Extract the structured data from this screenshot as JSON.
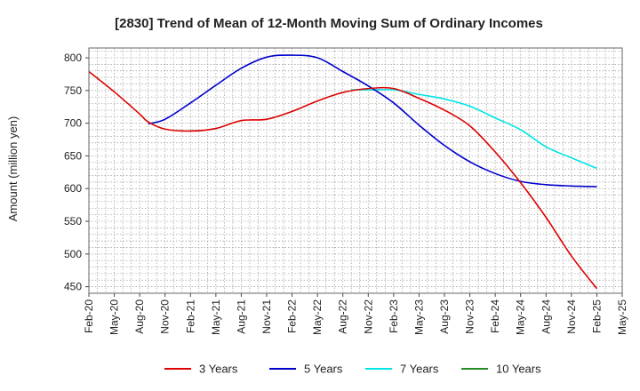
{
  "chart_data": {
    "type": "line",
    "title": "[2830]  Trend of Mean of 12-Month Moving Sum of Ordinary Incomes",
    "xlabel": "",
    "ylabel": "Amount (million yen)",
    "ylim": [
      440,
      815
    ],
    "yticks": [
      450,
      500,
      550,
      600,
      650,
      700,
      750,
      800
    ],
    "x_categories": [
      "Feb-20",
      "May-20",
      "Aug-20",
      "Nov-20",
      "Feb-21",
      "May-21",
      "Aug-21",
      "Nov-21",
      "Feb-22",
      "May-22",
      "Aug-22",
      "Nov-22",
      "Feb-23",
      "May-23",
      "Aug-23",
      "Nov-23",
      "Feb-24",
      "May-24",
      "Aug-24",
      "Nov-24",
      "Feb-25",
      "May-25"
    ],
    "grid": true,
    "legend_position": "bottom",
    "series": [
      {
        "name": "3 Years",
        "color": "#dd0000",
        "points": [
          {
            "x": "Feb-20",
            "y": 779
          },
          {
            "x": "May-20",
            "y": 748
          },
          {
            "x": "Aug-20",
            "y": 714
          },
          {
            "x": "Sep-20",
            "y": 702
          },
          {
            "x": "Nov-20",
            "y": 691
          },
          {
            "x": "Feb-21",
            "y": 688
          },
          {
            "x": "May-21",
            "y": 692
          },
          {
            "x": "Aug-21",
            "y": 704
          },
          {
            "x": "Nov-21",
            "y": 706
          },
          {
            "x": "Feb-22",
            "y": 718
          },
          {
            "x": "May-22",
            "y": 734
          },
          {
            "x": "Aug-22",
            "y": 747
          },
          {
            "x": "Nov-22",
            "y": 753
          },
          {
            "x": "Feb-23",
            "y": 753
          },
          {
            "x": "May-23",
            "y": 738
          },
          {
            "x": "Aug-23",
            "y": 720
          },
          {
            "x": "Nov-23",
            "y": 696
          },
          {
            "x": "Feb-24",
            "y": 656
          },
          {
            "x": "May-24",
            "y": 609
          },
          {
            "x": "Aug-24",
            "y": 556
          },
          {
            "x": "Nov-24",
            "y": 497
          },
          {
            "x": "Feb-25",
            "y": 447
          }
        ]
      },
      {
        "name": "5 Years",
        "color": "#0000cc",
        "points": [
          {
            "x": "Sep-20",
            "y": 699
          },
          {
            "x": "Nov-20",
            "y": 706
          },
          {
            "x": "Feb-21",
            "y": 731
          },
          {
            "x": "May-21",
            "y": 758
          },
          {
            "x": "Aug-21",
            "y": 784
          },
          {
            "x": "Nov-21",
            "y": 801
          },
          {
            "x": "Feb-22",
            "y": 804
          },
          {
            "x": "May-22",
            "y": 800
          },
          {
            "x": "Aug-22",
            "y": 779
          },
          {
            "x": "Nov-22",
            "y": 757
          },
          {
            "x": "Feb-23",
            "y": 731
          },
          {
            "x": "May-23",
            "y": 697
          },
          {
            "x": "Aug-23",
            "y": 666
          },
          {
            "x": "Nov-23",
            "y": 641
          },
          {
            "x": "Feb-24",
            "y": 623
          },
          {
            "x": "May-24",
            "y": 611
          },
          {
            "x": "Aug-24",
            "y": 606
          },
          {
            "x": "Nov-24",
            "y": 604
          },
          {
            "x": "Feb-25",
            "y": 603
          }
        ]
      },
      {
        "name": "7 Years",
        "color": "#00e5e5",
        "points": [
          {
            "x": "Sep-22",
            "y": 751
          },
          {
            "x": "Nov-22",
            "y": 751
          },
          {
            "x": "Feb-23",
            "y": 751
          },
          {
            "x": "May-23",
            "y": 744
          },
          {
            "x": "Aug-23",
            "y": 737
          },
          {
            "x": "Nov-23",
            "y": 726
          },
          {
            "x": "Feb-24",
            "y": 708
          },
          {
            "x": "May-24",
            "y": 690
          },
          {
            "x": "Aug-24",
            "y": 664
          },
          {
            "x": "Nov-24",
            "y": 647
          },
          {
            "x": "Feb-25",
            "y": 631
          }
        ]
      },
      {
        "name": "10 Years",
        "color": "#228b22",
        "points": []
      }
    ]
  }
}
